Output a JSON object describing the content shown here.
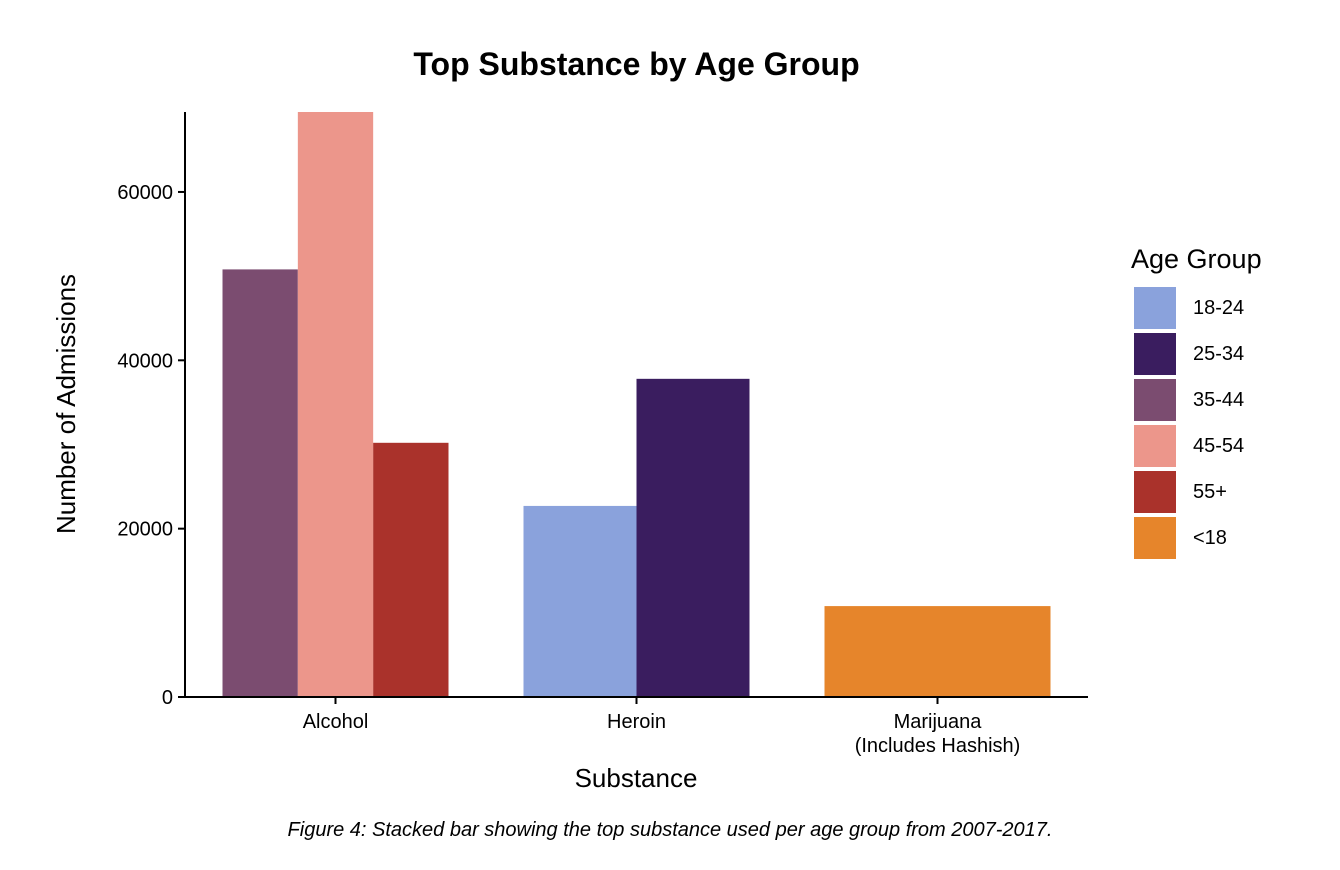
{
  "chart_data": {
    "type": "bar",
    "title": "Top Substance by Age Group",
    "xlabel": "Substance",
    "ylabel": "Number of Admissions",
    "caption": "Figure 4: Stacked bar showing the top substance used per age group from 2007-2017.",
    "ylim": [
      0,
      69500
    ],
    "yticks": [
      0,
      20000,
      40000,
      60000
    ],
    "grid": false,
    "legend_title": "Age Group",
    "legend_position": "right",
    "categories": [
      {
        "label_lines": [
          "Alcohol"
        ]
      },
      {
        "label_lines": [
          "Heroin"
        ]
      },
      {
        "label_lines": [
          "Marijuana",
          "(Includes Hashish)"
        ]
      }
    ],
    "series": [
      {
        "name": "18-24",
        "color": "#8AA2DC",
        "values": [
          null,
          22700,
          null
        ]
      },
      {
        "name": "25-34",
        "color": "#3A1D5F",
        "values": [
          null,
          37800,
          null
        ]
      },
      {
        "name": "35-44",
        "color": "#7B4C70",
        "values": [
          50800,
          null,
          null
        ]
      },
      {
        "name": "45-54",
        "color": "#EC968B",
        "values": [
          69800,
          null,
          null
        ]
      },
      {
        "name": "55+",
        "color": "#AA322B",
        "values": [
          30200,
          null,
          null
        ]
      },
      {
        "name": "<18",
        "color": "#E6852B",
        "values": [
          null,
          null,
          10800
        ]
      }
    ]
  }
}
